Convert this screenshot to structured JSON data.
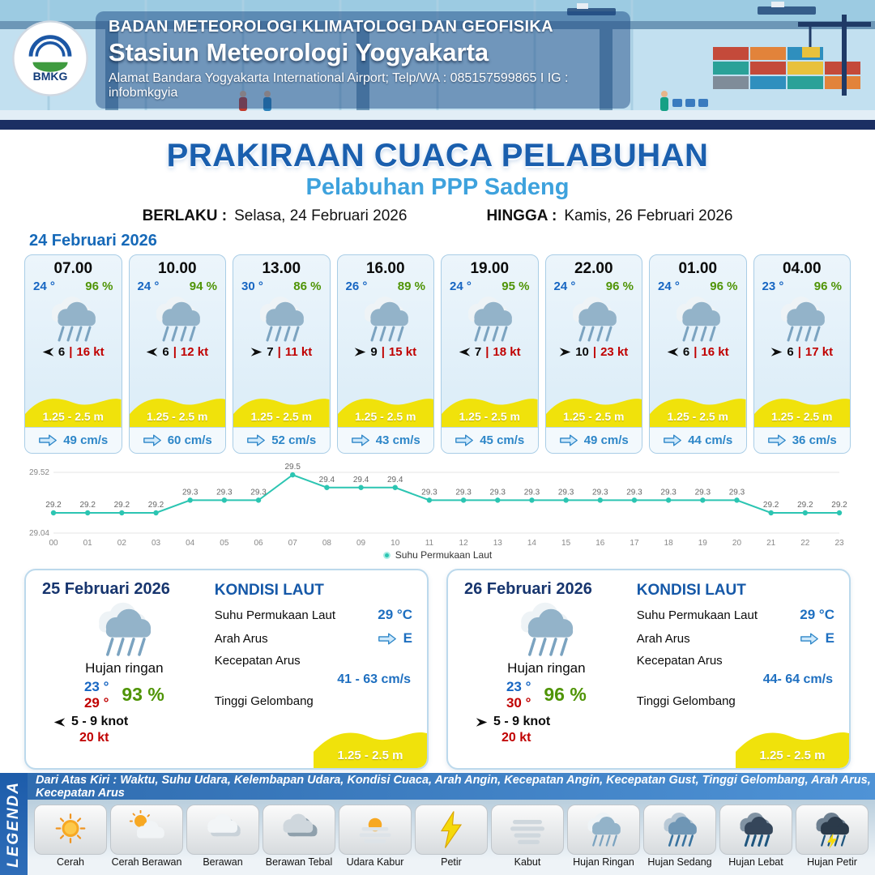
{
  "colors": {
    "primary_blue": "#1a5fae",
    "subtitle_blue": "#3ea2dd",
    "navy": "#17356e",
    "value_blue": "#1e6fc0",
    "red": "#c00000",
    "green": "#4f9406",
    "wave_yellow": "#f0e20b",
    "teal_line": "#2cc5b2"
  },
  "header": {
    "logo": "BMKG",
    "agency": "BADAN METEOROLOGI KLIMATOLOGI DAN GEOFISIKA",
    "station": "Stasiun Meteorologi Yogyakarta",
    "address": "Alamat Bandara Yogyakarta International Airport; Telp/WA : 085157599865 I IG : infobmkgyia"
  },
  "title": {
    "main": "PRAKIRAAN CUACA PELABUHAN",
    "subtitle": "Pelabuhan PPP Sadeng",
    "valid_from_label": "BERLAKU :",
    "valid_from": "Selasa, 24 Februari 2026",
    "valid_to_label": "HINGGA :",
    "valid_to": "Kamis, 26 Februari 2026"
  },
  "labels": {
    "divider": "|"
  },
  "hourly": {
    "date": "24 Februari 2026",
    "cards": [
      {
        "time": "07.00",
        "temp": "24 °",
        "rh": "96 %",
        "icon": "rain-icon",
        "wind_dir": "W",
        "wind": "6",
        "gust": "16 kt",
        "wave": "1.25 - 2.5 m",
        "current": "49 cm/s"
      },
      {
        "time": "10.00",
        "temp": "24 °",
        "rh": "94 %",
        "icon": "rain-icon",
        "wind_dir": "W",
        "wind": "6",
        "gust": "12 kt",
        "wave": "1.25 - 2.5 m",
        "current": "60 cm/s"
      },
      {
        "time": "13.00",
        "temp": "30 °",
        "rh": "86 %",
        "icon": "rain-icon",
        "wind_dir": "E",
        "wind": "7",
        "gust": "11 kt",
        "wave": "1.25 - 2.5 m",
        "current": "52 cm/s"
      },
      {
        "time": "16.00",
        "temp": "26 °",
        "rh": "89 %",
        "icon": "rain-icon",
        "wind_dir": "E",
        "wind": "9",
        "gust": "15 kt",
        "wave": "1.25 - 2.5 m",
        "current": "43 cm/s"
      },
      {
        "time": "19.00",
        "temp": "24 °",
        "rh": "95 %",
        "icon": "rain-icon",
        "wind_dir": "W",
        "wind": "7",
        "gust": "18 kt",
        "wave": "1.25 - 2.5 m",
        "current": "45 cm/s"
      },
      {
        "time": "22.00",
        "temp": "24 °",
        "rh": "96 %",
        "icon": "rain-icon",
        "wind_dir": "E",
        "wind": "10",
        "gust": "23 kt",
        "wave": "1.25 - 2.5 m",
        "current": "49 cm/s"
      },
      {
        "time": "01.00",
        "temp": "24 °",
        "rh": "96 %",
        "icon": "rain-icon",
        "wind_dir": "W",
        "wind": "6",
        "gust": "16 kt",
        "wave": "1.25 - 2.5 m",
        "current": "44 cm/s"
      },
      {
        "time": "04.00",
        "temp": "23 °",
        "rh": "96 %",
        "icon": "rain-icon",
        "wind_dir": "E",
        "wind": "6",
        "gust": "17 kt",
        "wave": "1.25 - 2.5 m",
        "current": "36 cm/s"
      }
    ]
  },
  "chart_data": {
    "type": "line",
    "title": "",
    "legend": "Suhu Permukaan Laut",
    "line_color": "#2cc5b2",
    "x": [
      "00",
      "01",
      "02",
      "03",
      "04",
      "05",
      "06",
      "07",
      "08",
      "09",
      "10",
      "11",
      "12",
      "13",
      "14",
      "15",
      "16",
      "17",
      "18",
      "19",
      "20",
      "21",
      "22",
      "23"
    ],
    "values": [
      29.2,
      29.2,
      29.2,
      29.2,
      29.3,
      29.3,
      29.3,
      29.5,
      29.4,
      29.4,
      29.4,
      29.3,
      29.3,
      29.3,
      29.3,
      29.3,
      29.3,
      29.3,
      29.3,
      29.3,
      29.3,
      29.2,
      29.2,
      29.2
    ],
    "ylim": [
      29.04,
      29.52
    ],
    "y_ticks": [
      "29.52",
      "29.04"
    ],
    "grid": true,
    "legend_position": "bottom"
  },
  "daily": [
    {
      "date": "25 Februari 2026",
      "icon": "rain-icon",
      "condition": "Hujan ringan",
      "temp_min": "23 °",
      "temp_max": "29 °",
      "rh": "93 %",
      "wind_dir": "W",
      "wind": "5 - 9 knot",
      "gust": "20 kt",
      "sea_title": "KONDISI LAUT",
      "sst_label": "Suhu Permukaan Laut",
      "sst": "29 °C",
      "current_dir_label": "Arah Arus",
      "current_dir": "E",
      "current_speed_label": "Kecepatan Arus",
      "current_speed": "41 - 63 cm/s",
      "wave_label": "Tinggi Gelombang",
      "wave": "1.25 - 2.5 m"
    },
    {
      "date": "26 Februari 2026",
      "icon": "rain-icon",
      "condition": "Hujan ringan",
      "temp_min": "23 °",
      "temp_max": "30 °",
      "rh": "96 %",
      "wind_dir": "E",
      "wind": "5 - 9 knot",
      "gust": "20 kt",
      "sea_title": "KONDISI LAUT",
      "sst_label": "Suhu Permukaan Laut",
      "sst": "29 °C",
      "current_dir_label": "Arah Arus",
      "current_dir": "E",
      "current_speed_label": "Kecepatan Arus",
      "current_speed": "44- 64 cm/s",
      "wave_label": "Tinggi Gelombang",
      "wave": "1.25 - 2.5 m"
    }
  ],
  "legend": {
    "title": "LEGENDA",
    "note": "Dari Atas Kiri : Waktu, Suhu Udara, Kelembapan Udara, Kondisi Cuaca, Arah Angin, Kecepatan Angin, Kecepatan Gust, Tinggi Gelombang, Arah Arus, Kecepatan Arus",
    "items": [
      {
        "label": "Cerah",
        "icon": "sun-icon"
      },
      {
        "label": "Cerah Berawan",
        "icon": "sun-cloud-icon"
      },
      {
        "label": "Berawan",
        "icon": "cloud-icon"
      },
      {
        "label": "Berawan Tebal",
        "icon": "dark-clouds-icon"
      },
      {
        "label": "Udara Kabur",
        "icon": "haze-icon"
      },
      {
        "label": "Petir",
        "icon": "lightning-icon"
      },
      {
        "label": "Kabut",
        "icon": "fog-icon"
      },
      {
        "label": "Hujan Ringan",
        "icon": "rain-icon"
      },
      {
        "label": "Hujan Sedang",
        "icon": "rain-moderate-icon"
      },
      {
        "label": "Hujan Lebat",
        "icon": "rain-heavy-icon"
      },
      {
        "label": "Hujan Petir",
        "icon": "rain-thunder-icon"
      }
    ]
  }
}
